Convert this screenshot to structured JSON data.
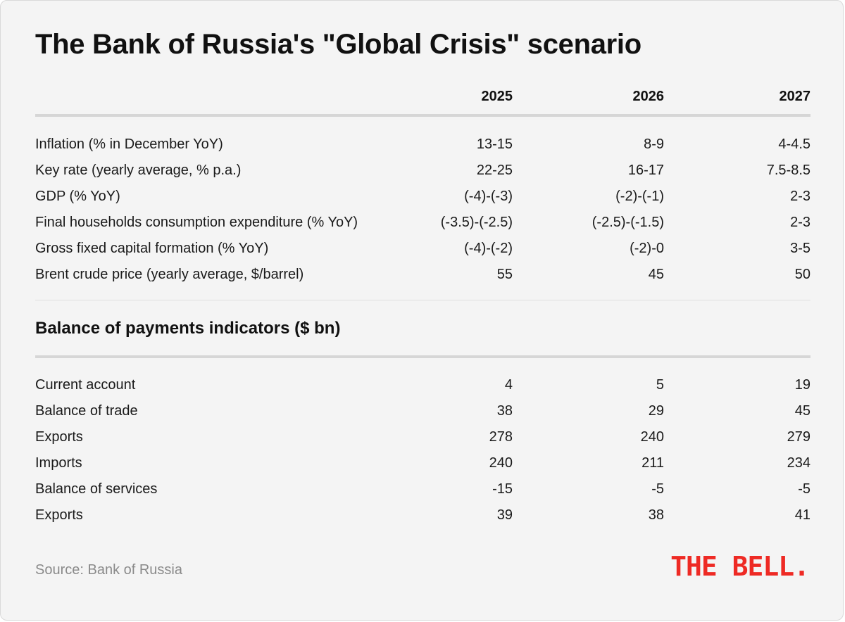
{
  "title": "The Bank of Russia's \"Global Crisis\" scenario",
  "columns": [
    "2025",
    "2026",
    "2027"
  ],
  "subtitle": "Balance of payments indicators ($ bn)",
  "source": "Source: Bank of Russia",
  "logo": "THE BELL.",
  "colors": {
    "background": "#f4f4f4",
    "text": "#111111",
    "muted": "#8a8a8a",
    "logo": "#ee2a24",
    "rule": "#d6d6d6"
  },
  "chart_data": [
    {
      "type": "table",
      "columns": [
        "2025",
        "2026",
        "2027"
      ],
      "rows": [
        {
          "label": "Inflation (% in December YoY)",
          "values": [
            "13-15",
            "8-9",
            "4-4.5"
          ]
        },
        {
          "label": "Key rate (yearly average, % p.a.)",
          "values": [
            "22-25",
            "16-17",
            "7.5-8.5"
          ]
        },
        {
          "label": "GDP (% YoY)",
          "values": [
            "(-4)-(-3)",
            "(-2)-(-1)",
            "2-3"
          ]
        },
        {
          "label": "Final households consumption expenditure (% YoY)",
          "values": [
            "(-3.5)-(-2.5)",
            "(-2.5)-(-1.5)",
            "2-3"
          ]
        },
        {
          "label": "Gross fixed capital formation (% YoY)",
          "values": [
            "(-4)-(-2)",
            "(-2)-0",
            "3-5"
          ]
        },
        {
          "label": "Brent crude price (yearly average, $/barrel)",
          "values": [
            "55",
            "45",
            "50"
          ]
        }
      ]
    },
    {
      "type": "table",
      "columns": [
        "2025",
        "2026",
        "2027"
      ],
      "rows": [
        {
          "label": "Current account",
          "values": [
            "4",
            "5",
            "19"
          ]
        },
        {
          "label": "Balance of trade",
          "values": [
            "38",
            "29",
            "45"
          ]
        },
        {
          "label": "Exports",
          "values": [
            "278",
            "240",
            "279"
          ]
        },
        {
          "label": "Imports",
          "values": [
            "240",
            "211",
            "234"
          ]
        },
        {
          "label": "Balance of services",
          "values": [
            "-15",
            "-5",
            "-5"
          ]
        },
        {
          "label": "Exports",
          "values": [
            "39",
            "38",
            "41"
          ]
        }
      ]
    }
  ]
}
